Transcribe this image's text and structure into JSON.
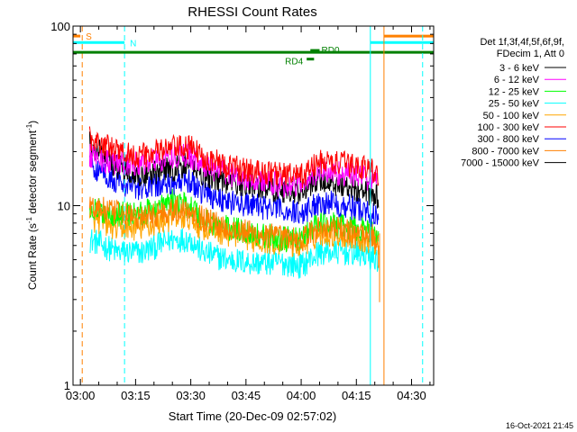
{
  "chart_data": {
    "type": "line",
    "title": "RHESSI Count Rates",
    "xlabel": "Start Time (20-Dec-09 02:57:02)",
    "ylabel": "Count Rate (s",
    "ylabel_sup1": "-1",
    "ylabel_mid": " detector segment",
    "ylabel_sup2": "-1",
    "ylabel_end": ")",
    "yscale": "log",
    "ylim": [
      1,
      100
    ],
    "xlim_minutes": [
      178,
      276
    ],
    "x_ticks": [
      {
        "label": "03:00",
        "minute": 180
      },
      {
        "label": "03:15",
        "minute": 195
      },
      {
        "label": "03:30",
        "minute": 210
      },
      {
        "label": "03:45",
        "minute": 225
      },
      {
        "label": "04:00",
        "minute": 240
      },
      {
        "label": "04:15",
        "minute": 255
      },
      {
        "label": "04:30",
        "minute": 270
      }
    ],
    "y_ticks": [
      {
        "label": "1",
        "value": 1
      },
      {
        "label": "10",
        "value": 10
      },
      {
        "label": "100",
        "value": 100
      }
    ],
    "legend_header": [
      "Det 1f,3f,4f,5f,6f,9f,",
      "FDecim 1, Att 0"
    ],
    "legend_position": "right",
    "timestamp": "16-Oct-2021 21:45",
    "data_span_minutes": [
      182.5,
      261
    ],
    "x_sample_minutes": [
      182.5,
      190,
      197,
      205,
      210,
      213,
      220,
      227,
      235,
      240,
      245,
      247,
      252,
      257,
      261
    ],
    "series": [
      {
        "name": "3 - 6 keV",
        "color": "#000000",
        "values": [
          22,
          16.5,
          15,
          16,
          17,
          15,
          13.5,
          13,
          12,
          12,
          14,
          13.5,
          13,
          12,
          11
        ]
      },
      {
        "name": "6 - 12 keV",
        "color": "#ff00ff",
        "values": [
          19,
          17,
          17,
          19,
          19,
          17,
          15,
          14,
          13,
          13,
          15.5,
          15.5,
          15,
          14.5,
          13.5
        ]
      },
      {
        "name": "12 - 25 keV",
        "color": "#00ff00",
        "values": [
          9.5,
          9,
          9,
          10.5,
          10,
          8.5,
          7.5,
          7,
          6.5,
          6.5,
          8,
          8,
          7.5,
          7.5,
          7
        ]
      },
      {
        "name": "25 - 50 keV",
        "color": "#00ffff",
        "values": [
          6.5,
          5.5,
          5.5,
          6.5,
          6.5,
          5.5,
          5,
          4.8,
          4.8,
          4.6,
          5.5,
          5.5,
          5.5,
          5.3,
          5
        ]
      },
      {
        "name": "50 - 100 keV",
        "color": "#ffa500",
        "values": [
          8.5,
          7.5,
          7.5,
          8.5,
          8.5,
          7.5,
          7,
          6.5,
          6.2,
          6,
          7,
          7,
          6.8,
          6.5,
          6.2
        ]
      },
      {
        "name": "100 - 300 keV",
        "color": "#ff0000",
        "values": [
          24,
          20,
          19,
          21,
          21,
          19,
          16.5,
          15.5,
          15,
          14.5,
          17.5,
          17.5,
          17,
          16.5,
          15
        ]
      },
      {
        "name": "300 - 800 keV",
        "color": "#0000ff",
        "values": [
          17,
          13.5,
          12.5,
          13.5,
          13.5,
          12,
          10.5,
          10,
          9.5,
          9,
          10.5,
          10.5,
          10,
          9.5,
          8.5
        ]
      },
      {
        "name": "800 - 7000 keV",
        "color": "#ff8000",
        "values": [
          10,
          9,
          8.5,
          9.5,
          9.5,
          8.5,
          7.5,
          7,
          6.6,
          6.4,
          7.5,
          7.5,
          7.2,
          7,
          6.5
        ]
      },
      {
        "name": "7000 - 15000 keV",
        "color": "#000000",
        "values": [
          null,
          null,
          null,
          null,
          null,
          null,
          null,
          null,
          null,
          null,
          null,
          null,
          null,
          null,
          null
        ]
      }
    ],
    "annotations": [
      {
        "label": "S",
        "color": "#ff8000",
        "bar_minutes": [
          178,
          180
        ],
        "bar_value": 88,
        "vline_minute": 180.5
      },
      {
        "label": "N",
        "color": "#00ffff",
        "bar_minutes": [
          178,
          192
        ],
        "bar_value": 81,
        "vline_minute": 192
      },
      {
        "label": "RD0",
        "color": "#008000",
        "bar_minutes": [
          178,
          276
        ],
        "bar_value": 71.5,
        "segment_minutes": [
          242.5,
          245
        ],
        "segment_value": 71.5
      },
      {
        "label": "RD4",
        "color": "#008000",
        "segment_minutes": [
          241.5,
          243.5
        ],
        "segment_value": 64
      },
      {
        "label": "",
        "color": "#00ffff",
        "bar_minutes": [
          258.8,
          276
        ],
        "bar_value": 81,
        "vline_minute": 258.8
      },
      {
        "label": "",
        "color": "#ff8000",
        "bar_minutes": [
          262.5,
          276
        ],
        "bar_value": 88,
        "vline_minute": 262.5
      },
      {
        "label": "",
        "color": "#00ffff",
        "vline_minute": 273
      }
    ]
  }
}
